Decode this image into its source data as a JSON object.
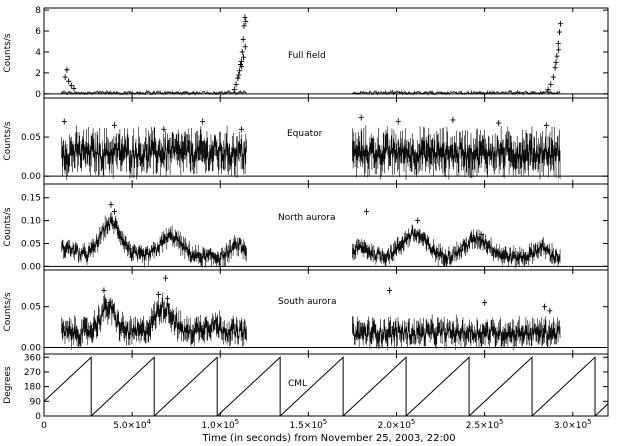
{
  "chart_data": {
    "type": "scatter",
    "x_axis": {
      "label": "Time (in seconds) from November 25, 2003, 22:00",
      "range": [
        0,
        320000
      ],
      "ticks": [
        0,
        50000,
        100000,
        150000,
        200000,
        250000,
        300000
      ],
      "tick_labels": [
        {
          "text": "0",
          "x": 0
        },
        {
          "mant": "5.0×10",
          "exp": "4",
          "x": 50000
        },
        {
          "mant": "1.0×10",
          "exp": "5",
          "x": 100000
        },
        {
          "mant": "1.5×10",
          "exp": "5",
          "x": 150000
        },
        {
          "mant": "2.0×10",
          "exp": "5",
          "x": 200000
        },
        {
          "mant": "2.5×10",
          "exp": "5",
          "x": 250000
        },
        {
          "mant": "3.0×10",
          "exp": "5",
          "x": 300000
        }
      ]
    },
    "observation_windows": [
      [
        10000,
        115000
      ],
      [
        175000,
        293000
      ]
    ],
    "panels": [
      {
        "id": "full-field",
        "label": "Full field",
        "ylabel": "Counts/s",
        "ylim": [
          -0.4,
          8.2
        ],
        "yticks": [
          0,
          2,
          4,
          6,
          8
        ],
        "ytick_labels": [
          "0",
          "2",
          "4",
          "6",
          "8"
        ],
        "baseline": 0.1,
        "noise": 0.12,
        "points": [
          [
            12000,
            1.6
          ],
          [
            13000,
            2.3
          ],
          [
            14000,
            1.2
          ],
          [
            15500,
            0.8
          ],
          [
            17000,
            0.5
          ],
          [
            108000,
            0.4
          ],
          [
            109000,
            0.9
          ],
          [
            110000,
            1.5
          ],
          [
            111000,
            2.2
          ],
          [
            112000,
            3.1
          ],
          [
            112500,
            4.0
          ],
          [
            113000,
            5.2
          ],
          [
            113500,
            6.5
          ],
          [
            114000,
            7.3
          ],
          [
            114500,
            6.9
          ],
          [
            112200,
            2.6
          ],
          [
            113200,
            3.5
          ],
          [
            110500,
            1.8
          ],
          [
            111500,
            2.8
          ],
          [
            114200,
            4.5
          ],
          [
            286000,
            0.4
          ],
          [
            287500,
            0.9
          ],
          [
            289000,
            1.6
          ],
          [
            290000,
            2.5
          ],
          [
            291000,
            3.6
          ],
          [
            291800,
            4.8
          ],
          [
            292500,
            5.9
          ],
          [
            293000,
            6.7
          ],
          [
            292000,
            4.2
          ],
          [
            290500,
            3.0
          ]
        ]
      },
      {
        "id": "equator",
        "label": "Equator",
        "ylabel": "Counts/s",
        "ylim": [
          -0.01,
          0.1
        ],
        "yticks": [
          0,
          0.05
        ],
        "ytick_labels": [
          "0.00",
          "0.05"
        ],
        "baseline": 0.03,
        "noise": 0.016,
        "points": [
          [
            11500,
            0.07
          ],
          [
            40000,
            0.065
          ],
          [
            68000,
            0.06
          ],
          [
            90000,
            0.07
          ],
          [
            112000,
            0.06
          ],
          [
            180000,
            0.075
          ],
          [
            201000,
            0.07
          ],
          [
            232000,
            0.072
          ],
          [
            258000,
            0.068
          ],
          [
            285000,
            0.065
          ]
        ]
      },
      {
        "id": "north-aurora",
        "label": "North aurora",
        "ylabel": "Counts/s",
        "ylim": [
          -0.008,
          0.18
        ],
        "yticks": [
          0,
          0.05,
          0.1,
          0.15
        ],
        "ytick_labels": [
          "0.00",
          "0.05",
          "0.10",
          "0.15"
        ],
        "baseline": 0.02,
        "noise": 0.012,
        "peaks": [
          {
            "center": 13000,
            "amp": 0.02,
            "width": 5000
          },
          {
            "center": 38000,
            "amp": 0.075,
            "width": 6000
          },
          {
            "center": 72000,
            "amp": 0.045,
            "width": 6000
          },
          {
            "center": 110000,
            "amp": 0.025,
            "width": 4000
          },
          {
            "center": 180000,
            "amp": 0.02,
            "width": 5000
          },
          {
            "center": 210000,
            "amp": 0.05,
            "width": 7000
          },
          {
            "center": 246000,
            "amp": 0.04,
            "width": 7000
          },
          {
            "center": 282000,
            "amp": 0.02,
            "width": 4000
          }
        ],
        "points": [
          [
            38000,
            0.135
          ],
          [
            40000,
            0.12
          ],
          [
            183000,
            0.12
          ],
          [
            212000,
            0.1
          ],
          [
            248000,
            0.07
          ]
        ]
      },
      {
        "id": "south-aurora",
        "label": "South aurora",
        "ylabel": "Counts/s",
        "ylim": [
          -0.008,
          0.095
        ],
        "yticks": [
          0,
          0.05
        ],
        "ytick_labels": [
          "0.00",
          "0.05"
        ],
        "baseline": 0.018,
        "noise": 0.01,
        "peaks": [
          {
            "center": 36000,
            "amp": 0.03,
            "width": 4500
          },
          {
            "center": 68000,
            "amp": 0.032,
            "width": 5000
          },
          {
            "center": 95000,
            "amp": 0.01,
            "width": 6000
          }
        ],
        "points": [
          [
            34000,
            0.07
          ],
          [
            37000,
            0.055
          ],
          [
            65000,
            0.065
          ],
          [
            69000,
            0.085
          ],
          [
            70000,
            0.06
          ],
          [
            196000,
            0.07
          ],
          [
            250000,
            0.055
          ],
          [
            284000,
            0.05
          ],
          [
            287000,
            0.045
          ]
        ]
      },
      {
        "id": "cml",
        "label": "CML",
        "ylabel": "Degrees",
        "ylim": [
          0,
          380
        ],
        "yticks": [
          0,
          90,
          180,
          270,
          360
        ],
        "ytick_labels": [
          "0",
          "90",
          "180",
          "270",
          "360"
        ],
        "type": "sawtooth",
        "start_value": 90,
        "period": 35730,
        "max": 360
      }
    ]
  }
}
